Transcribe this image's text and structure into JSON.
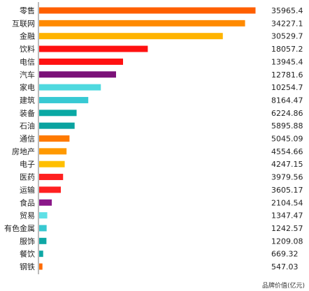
{
  "chart_data": {
    "type": "bar",
    "orientation": "horizontal",
    "unit_note": "品牌价值(亿元)",
    "categories": [
      "零售",
      "互联网",
      "金融",
      "饮料",
      "电信",
      "汽车",
      "家电",
      "建筑",
      "装备",
      "石油",
      "通信",
      "房地产",
      "电子",
      "医药",
      "运输",
      "食品",
      "贸易",
      "有色金属",
      "服饰",
      "餐饮",
      "钢铁"
    ],
    "values": [
      35965.4,
      34227.1,
      30529.7,
      18057.2,
      13945.4,
      12781.6,
      10254.7,
      8164.47,
      6224.86,
      5895.88,
      5045.09,
      4554.66,
      4247.15,
      3979.56,
      3605.17,
      2104.54,
      1347.47,
      1242.57,
      1209.08,
      669.32,
      547.03
    ],
    "value_labels": [
      "35965.4",
      "34227.1",
      "30529.7",
      "18057.2",
      "13945.4",
      "12781.6",
      "10254.7",
      "8164.47",
      "6224.86",
      "5895.88",
      "5045.09",
      "4554.66",
      "4247.15",
      "3979.56",
      "3605.17",
      "2104.54",
      "1347.47",
      "1242.57",
      "1209.08",
      "669.32",
      "547.03"
    ],
    "colors": [
      "#ff5f00",
      "#ff8a00",
      "#ffb400",
      "#ff1111",
      "#ff1111",
      "#7b1178",
      "#4fd9df",
      "#37c9d3",
      "#0aa9a4",
      "#0aa3a0",
      "#ff7a00",
      "#ff9900",
      "#ffbf00",
      "#ff2020",
      "#ff2020",
      "#8a1788",
      "#5fe0e6",
      "#38c8d1",
      "#0ea7a5",
      "#0fa7a5",
      "#ff6a00"
    ],
    "xlim": [
      0,
      38000
    ],
    "grid": false,
    "legend": "none"
  }
}
